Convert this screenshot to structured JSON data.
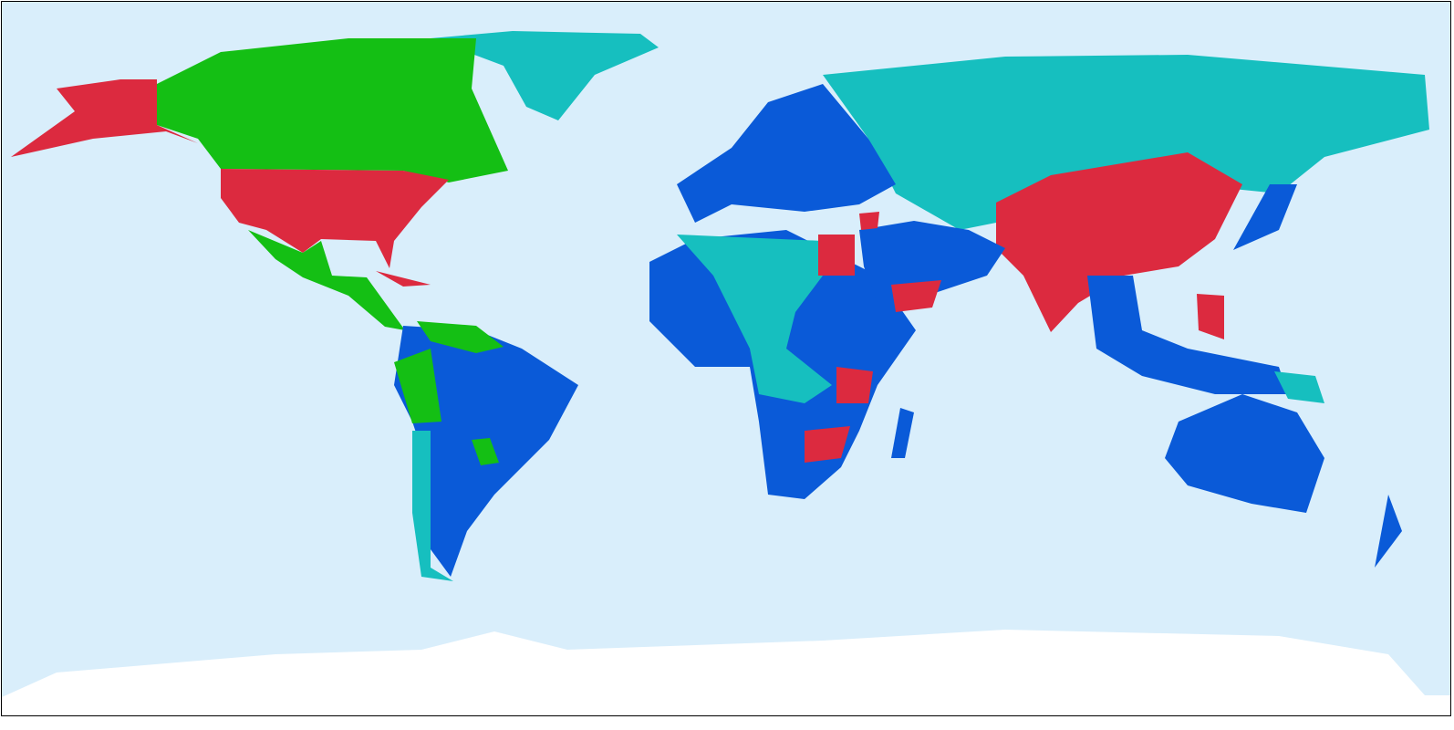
{
  "map": {
    "colors": {
      "ocean": "#d9eefb",
      "red": "#dc2a3f",
      "green": "#14bf14",
      "teal": "#16bfbf",
      "blue": "#0a5ad8",
      "ice": "#ffffff"
    },
    "legend": null
  }
}
